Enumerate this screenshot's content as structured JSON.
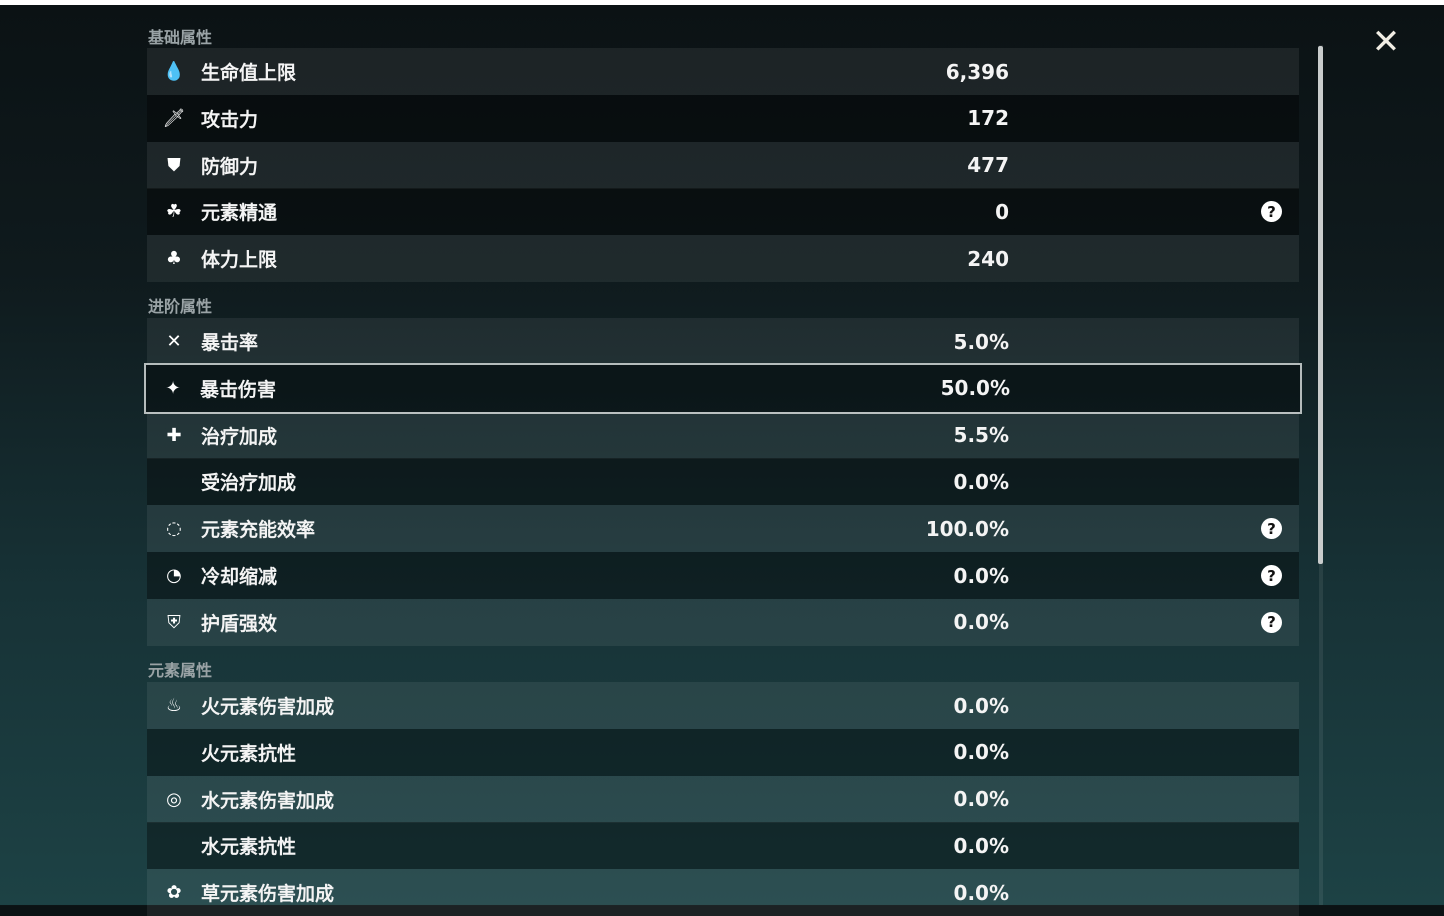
{
  "sections": [
    {
      "title": "基础属性",
      "rows": [
        {
          "icon": "hp-drop-icon",
          "glyph": "💧",
          "label": "生命值上限",
          "value": "6,396"
        },
        {
          "icon": "sword-icon",
          "glyph": "🗡",
          "label": "攻击力",
          "value": "172"
        },
        {
          "icon": "shield-icon",
          "glyph": "⛊",
          "label": "防御力",
          "value": "477"
        },
        {
          "icon": "elemental-mastery-icon",
          "glyph": "☘",
          "label": "元素精通",
          "value": "0",
          "help": true
        },
        {
          "icon": "stamina-icon",
          "glyph": "♣",
          "label": "体力上限",
          "value": "240"
        }
      ]
    },
    {
      "title": "进阶属性",
      "rows": [
        {
          "icon": "crit-rate-icon",
          "glyph": "✕",
          "label": "暴击率",
          "value": "5.0%"
        },
        {
          "icon": "crit-dmg-icon",
          "glyph": "✦",
          "label": "暴击伤害",
          "value": "50.0%",
          "selected": true
        },
        {
          "icon": "healing-icon",
          "glyph": "✚",
          "label": "治疗加成",
          "value": "5.5%"
        },
        {
          "icon": "",
          "glyph": "",
          "label": "受治疗加成",
          "value": "0.0%"
        },
        {
          "icon": "energy-recharge-icon",
          "glyph": "◌",
          "label": "元素充能效率",
          "value": "100.0%",
          "help": true
        },
        {
          "icon": "cooldown-icon",
          "glyph": "◔",
          "label": "冷却缩减",
          "value": "0.0%",
          "help": true
        },
        {
          "icon": "shield-strength-icon",
          "glyph": "⛨",
          "label": "护盾强效",
          "value": "0.0%",
          "help": true
        }
      ]
    },
    {
      "title": "元素属性",
      "rows": [
        {
          "icon": "pyro-icon",
          "glyph": "♨",
          "label": "火元素伤害加成",
          "value": "0.0%"
        },
        {
          "icon": "",
          "glyph": "",
          "label": "火元素抗性",
          "value": "0.0%"
        },
        {
          "icon": "hydro-icon",
          "glyph": "◎",
          "label": "水元素伤害加成",
          "value": "0.0%"
        },
        {
          "icon": "",
          "glyph": "",
          "label": "水元素抗性",
          "value": "0.0%"
        },
        {
          "icon": "dendro-icon",
          "glyph": "✿",
          "label": "草元素伤害加成",
          "value": "0.0%"
        }
      ]
    }
  ],
  "help_glyph": "?",
  "close_glyph": "✕"
}
